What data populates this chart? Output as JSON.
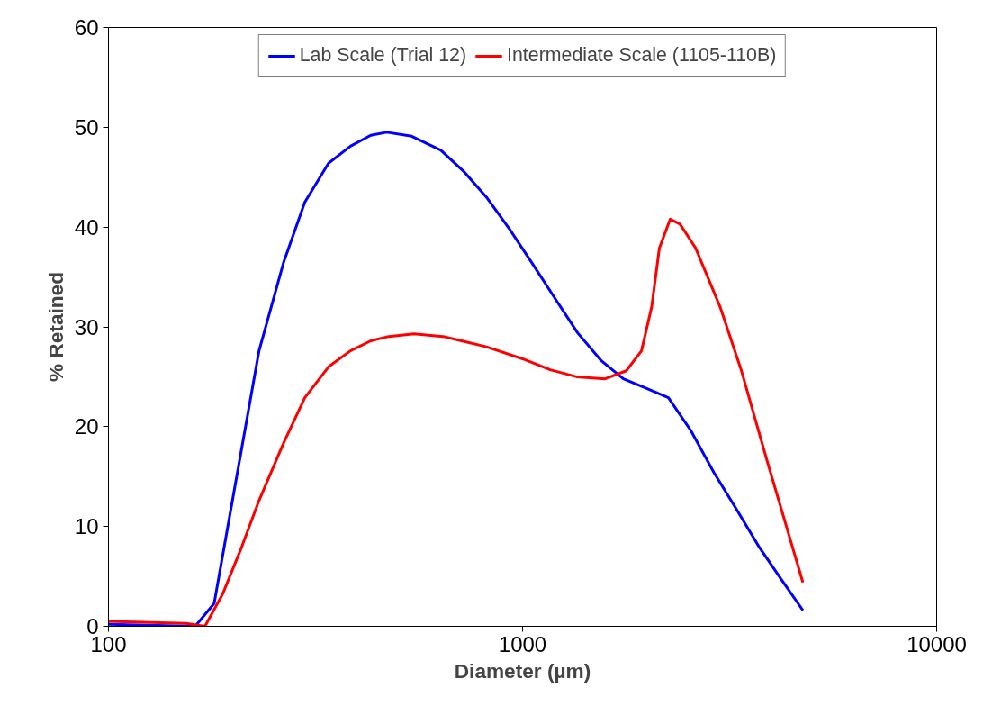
{
  "chart_data": {
    "type": "line",
    "xlabel": "Diameter (µm)",
    "ylabel": "% Retained",
    "log": "x",
    "xlim": [
      100,
      10000
    ],
    "xticks": [
      100,
      1000,
      10000
    ],
    "ylim": [
      0,
      60
    ],
    "yticks": [
      0,
      10,
      20,
      30,
      40,
      50,
      60
    ],
    "grid": false,
    "legend": "top",
    "line_style": "solid",
    "marker": "none",
    "series": [
      {
        "name": "Lab Scale (Trial 12)",
        "color": "#0000ff",
        "x": [
          100,
          162,
          180,
          200,
          231,
          265,
          298,
          340,
          384,
          430,
          470,
          540,
          635,
          720,
          818,
          930,
          1054,
          1200,
          1358,
          1550,
          1751,
          2000,
          2250,
          2550,
          2898,
          3300,
          3733,
          4200,
          4753
        ],
        "values": [
          0.2,
          0,
          2.3,
          13,
          27.6,
          36.5,
          42.5,
          46.4,
          48.1,
          49.2,
          49.5,
          49.1,
          47.7,
          45.6,
          43,
          39.8,
          36.4,
          32.8,
          29.4,
          26.6,
          24.8,
          23.8,
          22.9,
          19.6,
          15.4,
          11.6,
          7.9,
          4.8,
          1.6
        ]
      },
      {
        "name": "Intermediate Scale (1105-110B)",
        "color": "#ff0000",
        "x": [
          100,
          154,
          171,
          189,
          210,
          231,
          265,
          298,
          340,
          384,
          430,
          470,
          547,
          650,
          818,
          1000,
          1166,
          1350,
          1582,
          1780,
          1937,
          2050,
          2140,
          2273,
          2400,
          2617,
          3000,
          3372,
          3900,
          4753
        ],
        "values": [
          0.5,
          0.3,
          0,
          3.3,
          8,
          12.6,
          18.4,
          22.9,
          26,
          27.6,
          28.6,
          29,
          29.3,
          29,
          28,
          26.8,
          25.7,
          25,
          24.8,
          25.6,
          27.6,
          32,
          37.9,
          40.8,
          40.3,
          37.9,
          32,
          25.7,
          16.5,
          4.4
        ]
      }
    ]
  }
}
